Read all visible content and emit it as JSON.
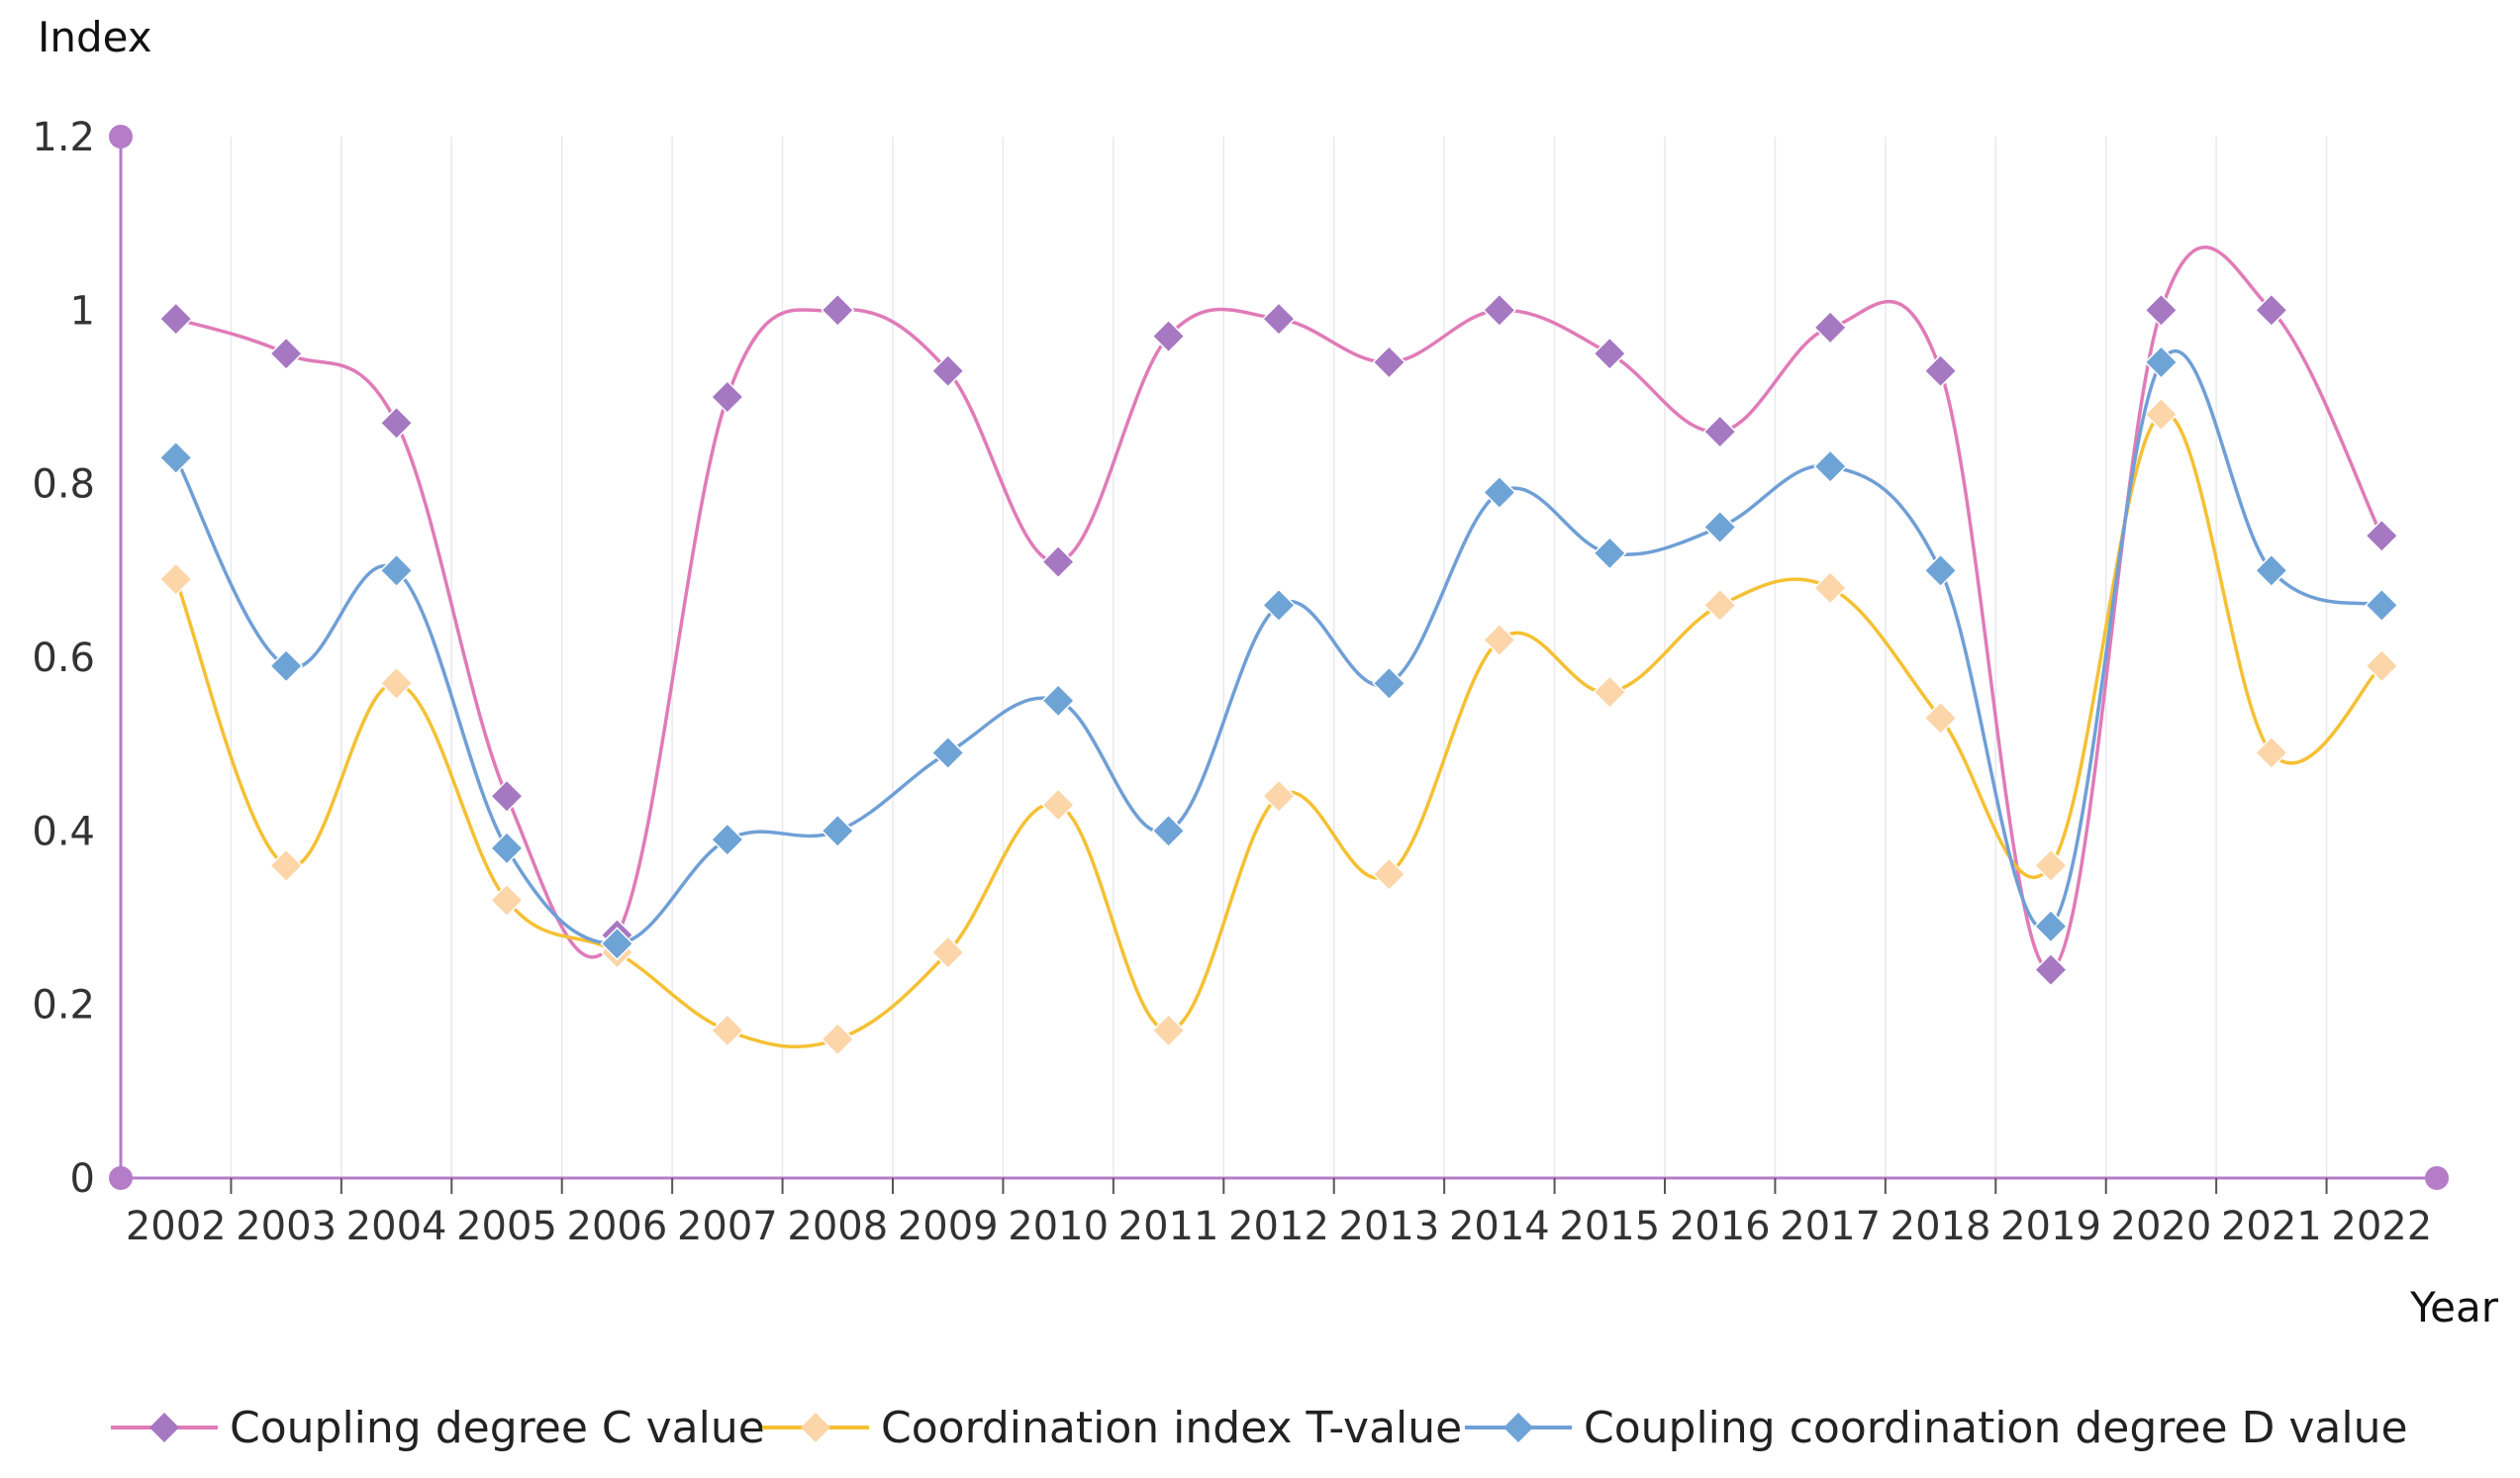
{
  "chart_data": {
    "type": "line",
    "title": "",
    "ylabel": "Index",
    "xlabel": "Year",
    "ylim": [
      0,
      1.2
    ],
    "yticks": [
      0,
      0.2,
      0.4,
      0.6,
      0.8,
      1,
      1.2
    ],
    "ytick_labels": [
      "0",
      "0.2",
      "0.4",
      "0.6",
      "0.8",
      "1",
      "1.2"
    ],
    "categories": [
      "2002",
      "2003",
      "2004",
      "2005",
      "2006",
      "2007",
      "2008",
      "2009",
      "2010",
      "2011",
      "2012",
      "2013",
      "2014",
      "2015",
      "2016",
      "2017",
      "2018",
      "2019",
      "2020",
      "2021",
      "2022"
    ],
    "grid": "vertical",
    "legend_position": "bottom",
    "series": [
      {
        "name": "Coupling degree C value",
        "color": "#e07bb8",
        "marker_color": "#a678c2",
        "values": [
          0.99,
          0.95,
          0.87,
          0.44,
          0.28,
          0.9,
          1.0,
          0.93,
          0.71,
          0.97,
          0.99,
          0.94,
          1.0,
          0.95,
          0.86,
          0.98,
          0.93,
          0.24,
          1.0,
          1.0,
          0.74
        ]
      },
      {
        "name": "Coordination index T-value",
        "color": "#f5c033",
        "marker_color": "#fcd5a8",
        "values": [
          0.69,
          0.36,
          0.57,
          0.32,
          0.26,
          0.17,
          0.16,
          0.26,
          0.43,
          0.17,
          0.44,
          0.35,
          0.62,
          0.56,
          0.66,
          0.68,
          0.53,
          0.36,
          0.88,
          0.49,
          0.59
        ]
      },
      {
        "name": "Coupling coordination degree D value",
        "color": "#6f9fd6",
        "marker_color": "#6ea3d6",
        "values": [
          0.83,
          0.59,
          0.7,
          0.38,
          0.27,
          0.39,
          0.4,
          0.49,
          0.55,
          0.4,
          0.66,
          0.57,
          0.79,
          0.72,
          0.75,
          0.82,
          0.7,
          0.29,
          0.94,
          0.7,
          0.66
        ]
      }
    ],
    "axis_color": "#b57cc8"
  }
}
